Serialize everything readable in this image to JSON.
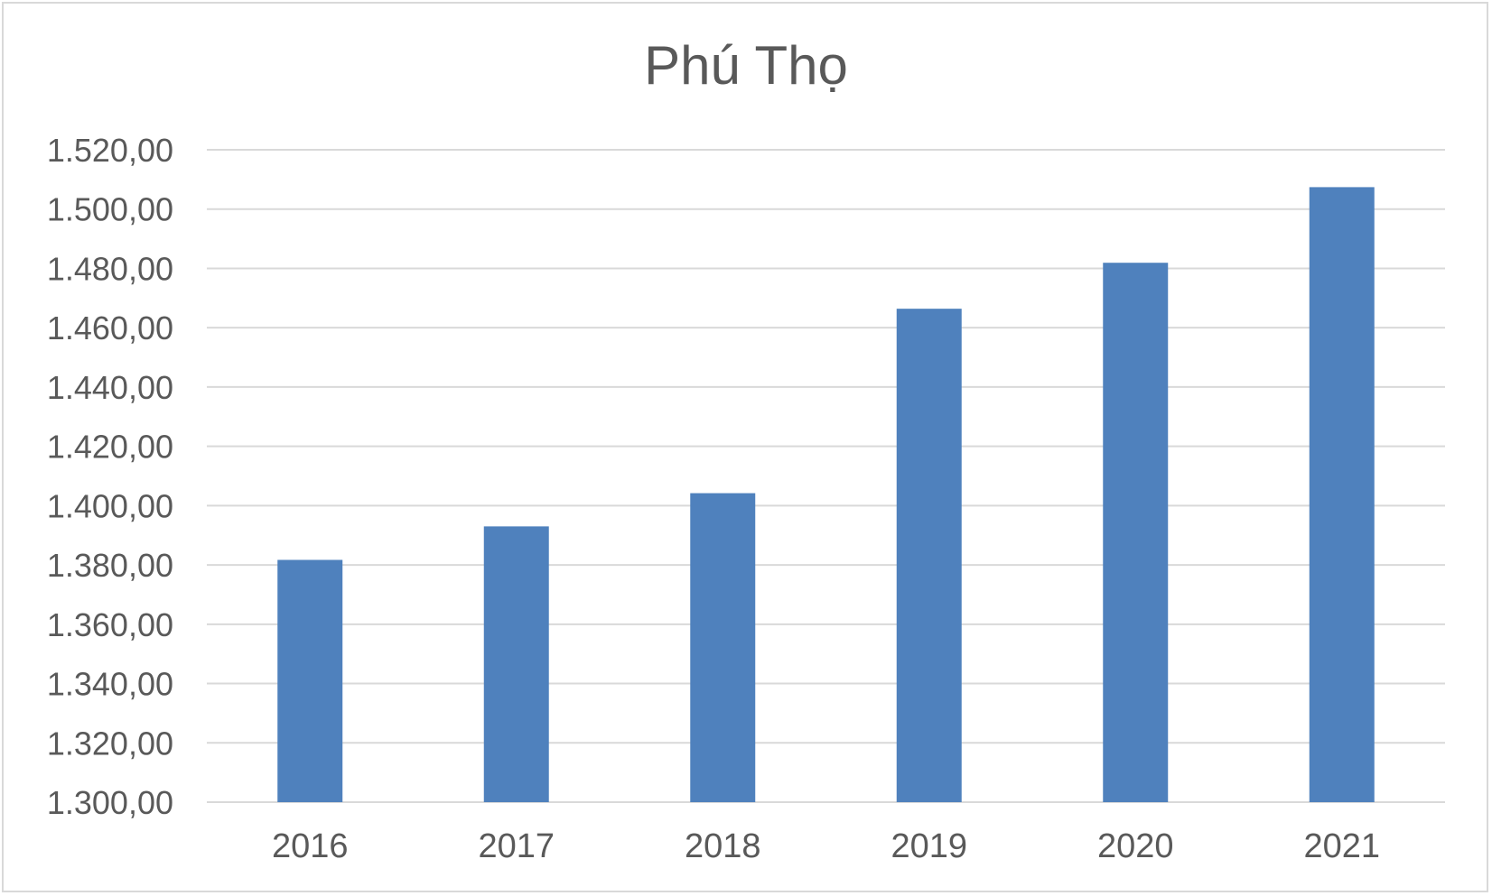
{
  "chart_data": {
    "type": "bar",
    "title": "Phú Thọ",
    "xlabel": "",
    "ylabel": "",
    "categories": [
      "2016",
      "2017",
      "2018",
      "2019",
      "2020",
      "2021"
    ],
    "values": [
      1381.7,
      1393.0,
      1404.2,
      1466.4,
      1481.9,
      1507.4
    ],
    "ylim": [
      1300,
      1520
    ],
    "y_ticks": [
      1300,
      1320,
      1340,
      1360,
      1380,
      1400,
      1420,
      1440,
      1460,
      1480,
      1500,
      1520
    ],
    "y_tick_labels": [
      "1.300,00",
      "1.320,00",
      "1.340,00",
      "1.360,00",
      "1.380,00",
      "1.400,00",
      "1.420,00",
      "1.440,00",
      "1.460,00",
      "1.480,00",
      "1.500,00",
      "1.520,00"
    ],
    "grid": true,
    "legend": "none",
    "bar_color": "#4f81bd",
    "grid_color": "#d9d9d9"
  }
}
